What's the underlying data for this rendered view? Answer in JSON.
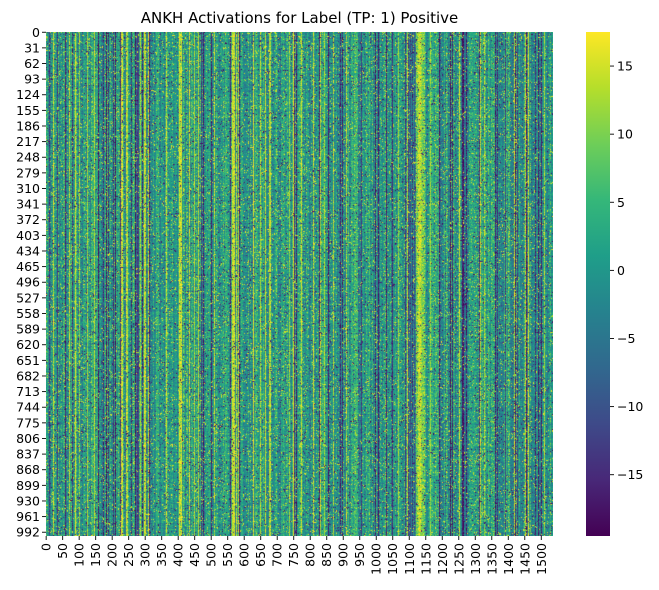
{
  "chart_data": {
    "type": "heatmap",
    "title": "ANKH Activations for Label (TP: 1) Positive",
    "xlabel": "",
    "ylabel": "",
    "rows": 1000,
    "cols": 1536,
    "y_tick_labels": [
      "0",
      "31",
      "62",
      "93",
      "124",
      "155",
      "186",
      "217",
      "248",
      "279",
      "310",
      "341",
      "372",
      "403",
      "434",
      "465",
      "496",
      "527",
      "558",
      "589",
      "620",
      "651",
      "682",
      "713",
      "744",
      "775",
      "806",
      "837",
      "868",
      "899",
      "930",
      "961",
      "992"
    ],
    "x_tick_labels": [
      "0",
      "50",
      "100",
      "150",
      "200",
      "250",
      "300",
      "350",
      "400",
      "450",
      "500",
      "550",
      "600",
      "650",
      "700",
      "750",
      "800",
      "850",
      "900",
      "950",
      "1000",
      "1050",
      "1100",
      "1150",
      "1200",
      "1250",
      "1300",
      "1350",
      "1400",
      "1450",
      "1500"
    ],
    "colorbar": {
      "colormap": "viridis",
      "vmin": -19.5,
      "vmax": 17.5,
      "tick_values": [
        15,
        10,
        5,
        0,
        -5,
        -10,
        -15
      ],
      "tick_labels": [
        "15",
        "10",
        "5",
        "0",
        "−5",
        "−10",
        "−15"
      ]
    },
    "grid": false
  }
}
